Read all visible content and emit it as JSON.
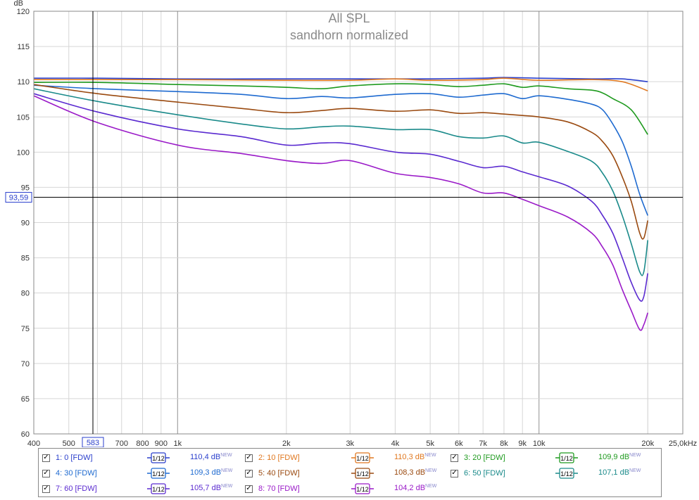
{
  "chart_data": {
    "type": "line",
    "title": "All SPL",
    "subtitle": "sandhorn normalized",
    "ylabel": "dB",
    "xscale": "log",
    "xlim": [
      400,
      25000
    ],
    "ylim": [
      60,
      120
    ],
    "grid": true,
    "yticks": [
      60,
      65,
      70,
      75,
      80,
      85,
      90,
      95,
      100,
      105,
      110,
      115,
      120
    ],
    "xticks": [
      {
        "v": 400,
        "label": "400"
      },
      {
        "v": 500,
        "label": "500"
      },
      {
        "v": 700,
        "label": "700"
      },
      {
        "v": 800,
        "label": "800"
      },
      {
        "v": 900,
        "label": "900"
      },
      {
        "v": 1000,
        "label": "1k"
      },
      {
        "v": 2000,
        "label": "2k"
      },
      {
        "v": 3000,
        "label": "3k"
      },
      {
        "v": 4000,
        "label": "4k"
      },
      {
        "v": 5000,
        "label": "5k"
      },
      {
        "v": 6000,
        "label": "6k"
      },
      {
        "v": 7000,
        "label": "7k"
      },
      {
        "v": 8000,
        "label": "8k"
      },
      {
        "v": 9000,
        "label": "9k"
      },
      {
        "v": 10000,
        "label": "10k"
      },
      {
        "v": 20000,
        "label": "20k"
      },
      {
        "v": 25000,
        "label": "25,0kHz"
      }
    ],
    "cursor": {
      "x": 583,
      "y": 93.59,
      "x_label": "583",
      "y_label": "93,59"
    },
    "series": [
      {
        "name": "1: 0 [FDW]",
        "color": "#2a3fcc",
        "x": [
          400,
          600,
          1000,
          2000,
          3000,
          5000,
          7000,
          8000,
          10000,
          14000,
          17000,
          20000
        ],
        "y": [
          110.5,
          110.5,
          110.4,
          110.4,
          110.4,
          110.4,
          110.5,
          110.6,
          110.5,
          110.4,
          110.4,
          110.0
        ]
      },
      {
        "name": "2: 10 [FDW]",
        "color": "#e07820",
        "x": [
          400,
          600,
          1000,
          2000,
          3000,
          4000,
          5000,
          7000,
          8000,
          10000,
          14000,
          17000,
          20000
        ],
        "y": [
          110.3,
          110.3,
          110.3,
          110.2,
          110.2,
          110.4,
          110.2,
          110.3,
          110.5,
          110.2,
          110.3,
          110.0,
          108.7
        ]
      },
      {
        "name": "3: 20 [FDW]",
        "color": "#1e9a1e",
        "x": [
          400,
          600,
          1000,
          1500,
          2000,
          2500,
          3000,
          4000,
          5000,
          6000,
          7000,
          8000,
          9000,
          10000,
          12000,
          14000,
          15000,
          16000,
          18000,
          20000
        ],
        "y": [
          109.9,
          109.9,
          109.6,
          109.4,
          109.2,
          109.0,
          109.4,
          109.7,
          109.6,
          109.3,
          109.5,
          109.7,
          109.2,
          109.4,
          109.0,
          108.8,
          108.4,
          107.6,
          106.0,
          102.5
        ]
      },
      {
        "name": "4: 30 [FDW]",
        "color": "#1e6ad0",
        "x": [
          400,
          600,
          1000,
          1500,
          2000,
          2500,
          3000,
          4000,
          5000,
          6000,
          7000,
          8000,
          9000,
          10000,
          12000,
          14000,
          15000,
          16000,
          17000,
          18000,
          19000,
          20000
        ],
        "y": [
          109.5,
          109.0,
          108.6,
          108.2,
          107.6,
          107.9,
          107.7,
          108.2,
          108.3,
          107.8,
          108.1,
          108.3,
          107.6,
          108.0,
          107.5,
          106.8,
          106.0,
          104.0,
          101.5,
          98.0,
          94.0,
          91.0
        ]
      },
      {
        "name": "5: 40 [FDW]",
        "color": "#9a4a10",
        "x": [
          400,
          600,
          1000,
          1500,
          2000,
          2500,
          3000,
          4000,
          5000,
          6000,
          7000,
          8000,
          9000,
          10000,
          12000,
          14000,
          15000,
          16000,
          17000,
          18000,
          19000,
          19500,
          20000
        ],
        "y": [
          109.6,
          108.3,
          107.1,
          106.2,
          105.6,
          105.9,
          106.2,
          105.8,
          106.0,
          105.5,
          105.6,
          105.4,
          105.2,
          105.0,
          104.3,
          102.8,
          101.5,
          99.5,
          96.5,
          93.0,
          88.5,
          87.8,
          90.3
        ]
      },
      {
        "name": "6: 50 [FDW]",
        "color": "#1a8a8a",
        "x": [
          400,
          600,
          1000,
          1500,
          2000,
          2500,
          3000,
          4000,
          5000,
          6000,
          7000,
          8000,
          9000,
          10000,
          12000,
          14000,
          15000,
          16000,
          17000,
          18000,
          19000,
          19500,
          20000
        ],
        "y": [
          109.0,
          107.2,
          105.3,
          104.0,
          103.3,
          103.6,
          103.7,
          103.2,
          103.2,
          102.2,
          102.0,
          102.3,
          101.3,
          101.4,
          100.1,
          98.7,
          97.0,
          94.5,
          91.0,
          87.0,
          83.0,
          83.0,
          87.5
        ]
      },
      {
        "name": "7: 60 [FDW]",
        "color": "#5a2ad0",
        "x": [
          400,
          600,
          1000,
          1500,
          2000,
          2500,
          3000,
          4000,
          5000,
          6000,
          7000,
          8000,
          9000,
          10000,
          12000,
          14000,
          15000,
          16000,
          17000,
          18000,
          19000,
          19500,
          20000
        ],
        "y": [
          108.3,
          105.7,
          103.3,
          102.2,
          101.0,
          101.3,
          101.2,
          100.0,
          99.7,
          98.7,
          97.8,
          98.0,
          97.2,
          96.5,
          95.2,
          93.0,
          91.0,
          88.5,
          85.0,
          81.5,
          79.0,
          79.5,
          82.8
        ]
      },
      {
        "name": "8: 70 [FDW]",
        "color": "#9a1ac8",
        "x": [
          400,
          600,
          1000,
          1500,
          2000,
          2500,
          3000,
          4000,
          5000,
          6000,
          7000,
          8000,
          9000,
          10000,
          12000,
          14000,
          15000,
          16000,
          17000,
          18000,
          19000,
          19500,
          20000
        ],
        "y": [
          108.0,
          104.2,
          101.0,
          99.8,
          98.8,
          98.4,
          98.8,
          97.0,
          96.4,
          95.5,
          94.2,
          94.2,
          93.3,
          92.4,
          90.8,
          88.5,
          86.5,
          84.0,
          80.5,
          77.5,
          74.8,
          75.5,
          77.2
        ]
      }
    ]
  },
  "legend": [
    {
      "label": "1: 0 [FDW]",
      "value": "110,4 dB",
      "sup": "NEW",
      "smooth": "1/12",
      "color": "#2a3fcc"
    },
    {
      "label": "2: 10 [FDW]",
      "value": "110,3 dB",
      "sup": "NEW",
      "smooth": "1/12",
      "color": "#e07820"
    },
    {
      "label": "3: 20 [FDW]",
      "value": "109,9 dB",
      "sup": "NEW",
      "smooth": "1/12",
      "color": "#1e9a1e"
    },
    {
      "label": "4: 30 [FDW]",
      "value": "109,3 dB",
      "sup": "NEW",
      "smooth": "1/12",
      "color": "#1e6ad0"
    },
    {
      "label": "5: 40 [FDW]",
      "value": "108,3 dB",
      "sup": "NEW",
      "smooth": "1/12",
      "color": "#9a4a10"
    },
    {
      "label": "6: 50 [FDW]",
      "value": "107,1 dB",
      "sup": "NEW",
      "smooth": "1/12",
      "color": "#1a8a8a"
    },
    {
      "label": "7: 60 [FDW]",
      "value": "105,7 dB",
      "sup": "NEW",
      "smooth": "1/12",
      "color": "#5a2ad0"
    },
    {
      "label": "8: 70 [FDW]",
      "value": "104,2 dB",
      "sup": "NEW",
      "smooth": "1/12",
      "color": "#9a1ac8"
    }
  ]
}
